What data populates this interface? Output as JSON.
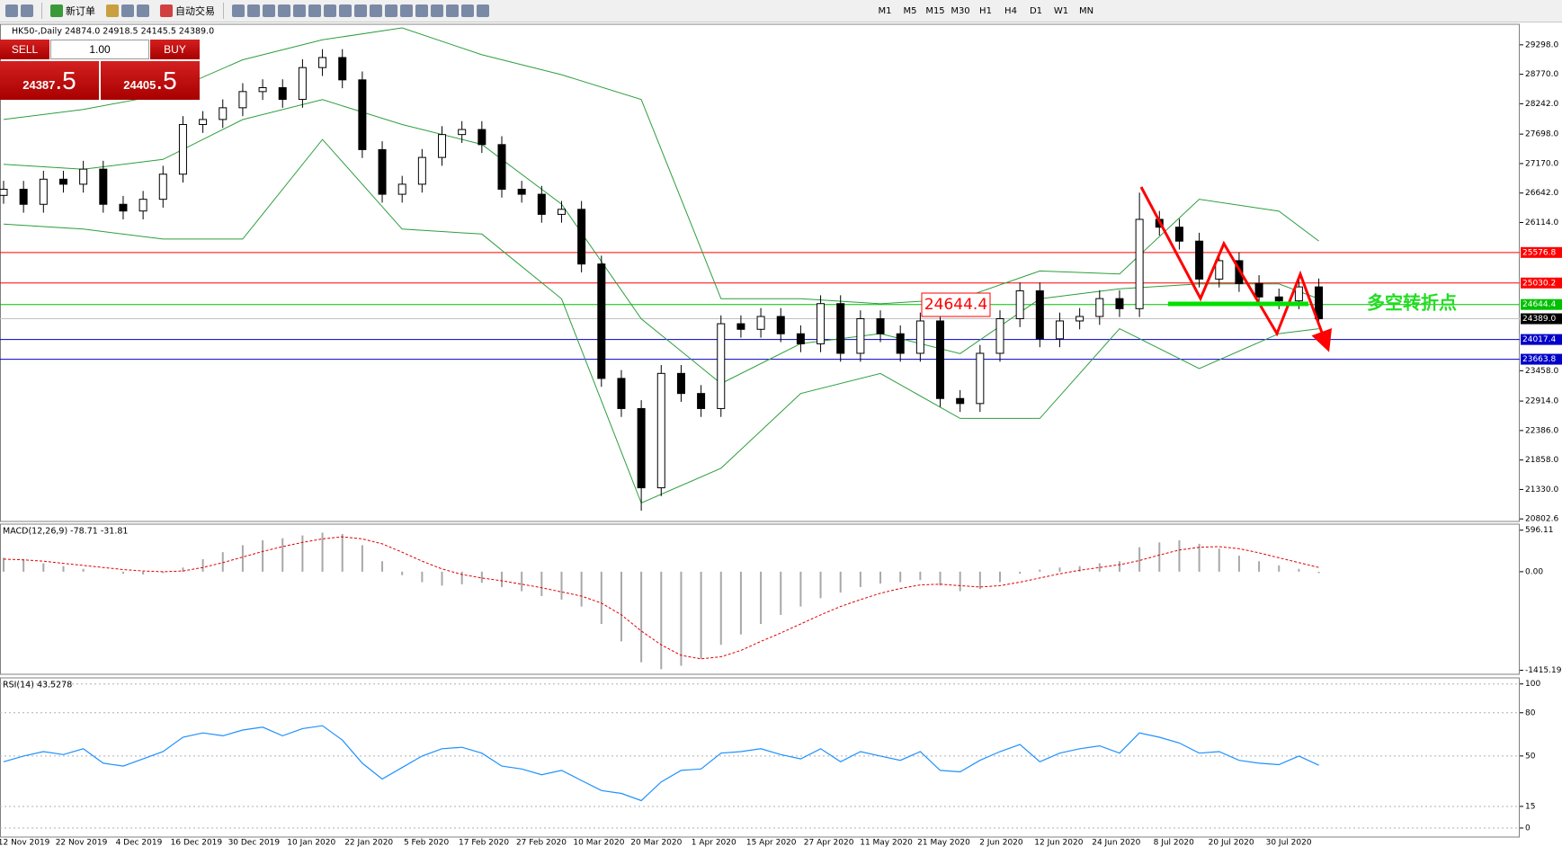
{
  "toolbar": {
    "new_order": "新订单",
    "auto_trading": "自动交易",
    "timeframes": [
      "M1",
      "M5",
      "M15",
      "M30",
      "H1",
      "H4",
      "D1",
      "W1",
      "MN"
    ]
  },
  "trade_panel": {
    "sell": "SELL",
    "buy": "BUY",
    "lots": "1.00",
    "bid_main": "24387",
    "bid_pips": ".5",
    "ask_main": "24405",
    "ask_pips": ".5"
  },
  "chart_data": [
    {
      "type": "candlestick",
      "title": "HK50-,Daily  24874.0 24918.5 24145.5 24389.0",
      "open": [
        26600,
        26710,
        26440,
        26890,
        26800,
        27070,
        26440,
        26320,
        26530,
        26980,
        27870,
        27960,
        28170,
        28460,
        28530,
        28320,
        28890,
        29070,
        28670,
        27420,
        26620,
        26800,
        27280,
        27690,
        27780,
        27510,
        26710,
        26620,
        26260,
        26350,
        25370,
        23320,
        22780,
        21360,
        23410,
        23050,
        22780,
        24300,
        24200,
        24430,
        24120,
        23940,
        24660,
        23770,
        24390,
        24120,
        23770,
        24350,
        22960,
        22870,
        23770,
        24390,
        24890,
        24030,
        24350,
        24430,
        24750,
        24570,
        26170,
        26030,
        25780,
        25100,
        25430,
        25020,
        24780,
        24710,
        24960
      ],
      "high": [
        26860,
        26860,
        27040,
        27040,
        27220,
        27220,
        26590,
        26680,
        27130,
        28020,
        28110,
        28320,
        28610,
        28680,
        28680,
        29040,
        29220,
        29220,
        28820,
        27570,
        26950,
        27430,
        27840,
        27930,
        27930,
        27660,
        26860,
        26770,
        26500,
        26500,
        25520,
        23470,
        22930,
        23560,
        23560,
        23200,
        24450,
        24450,
        24580,
        24580,
        24270,
        24810,
        24810,
        24540,
        24540,
        24270,
        24500,
        24500,
        23110,
        23920,
        24540,
        25040,
        25040,
        24500,
        24580,
        24900,
        24900,
        26650,
        26320,
        26180,
        25930,
        25580,
        25580,
        25170,
        24930,
        25110,
        25110
      ],
      "low": [
        26450,
        26290,
        26290,
        26650,
        26650,
        26290,
        26170,
        26170,
        26380,
        26830,
        27720,
        27810,
        28020,
        28310,
        28170,
        28170,
        28740,
        28520,
        27270,
        26470,
        26470,
        26650,
        27130,
        27540,
        27360,
        26560,
        26470,
        26110,
        26110,
        25220,
        23170,
        22630,
        20950,
        21210,
        22900,
        22630,
        22630,
        24050,
        24050,
        23970,
        23790,
        23790,
        23620,
        23620,
        23970,
        23620,
        23620,
        22810,
        22720,
        22720,
        23620,
        24240,
        23880,
        23880,
        24200,
        24280,
        24420,
        24420,
        25880,
        25630,
        24950,
        24950,
        24870,
        24630,
        24560,
        24560,
        24240
      ],
      "close": [
        26710,
        26440,
        26890,
        26800,
        27070,
        26440,
        26320,
        26530,
        26980,
        27870,
        27960,
        28170,
        28460,
        28530,
        28320,
        28890,
        29070,
        28670,
        27420,
        26620,
        26800,
        27280,
        27690,
        27780,
        27510,
        26710,
        26620,
        26260,
        26350,
        25370,
        23320,
        22780,
        21360,
        23410,
        23050,
        22780,
        24300,
        24200,
        24430,
        24120,
        23940,
        24660,
        23770,
        24390,
        24120,
        23770,
        24350,
        22960,
        22870,
        23770,
        24390,
        24890,
        24030,
        24350,
        24430,
        24750,
        24570,
        26170,
        26030,
        25780,
        25100,
        25430,
        25020,
        24780,
        24710,
        24960,
        24389
      ],
      "bands": {
        "color": "#2e9e3e",
        "upper": [
          27960,
          28138,
          28406,
          29030,
          29387,
          29601,
          29120,
          28763,
          28317,
          24747,
          24747,
          24657,
          24747,
          25246,
          25192,
          26531,
          26317,
          25782
        ],
        "middle": [
          27156,
          27067,
          27245,
          27959,
          28316,
          27870,
          27513,
          26442,
          24389,
          23229,
          23943,
          24122,
          23765,
          24746,
          24925,
          25014,
          25014,
          24746
        ],
        "lower": [
          26085,
          25996,
          25817,
          25817,
          27602,
          25996,
          25907,
          24746,
          21087,
          21711,
          23050,
          23408,
          22604,
          22604,
          24211,
          23497,
          24122,
          24211
        ]
      },
      "up_color": "#ffffff",
      "down_color": "#000000",
      "ylim": [
        20757,
        29666
      ],
      "yticks": [
        {
          "value": 29298,
          "label": "29298.0"
        },
        {
          "value": 28770,
          "label": "28770.0"
        },
        {
          "value": 28242,
          "label": "28242.0"
        },
        {
          "value": 27698,
          "label": "27698.0"
        },
        {
          "value": 27170,
          "label": "27170.0"
        },
        {
          "value": 26642,
          "label": "26642.0"
        },
        {
          "value": 26114,
          "label": "26114.0"
        },
        {
          "value": 23458,
          "label": "23458.0"
        },
        {
          "value": 22914,
          "label": "22914.0"
        },
        {
          "value": 22386,
          "label": "22386.0"
        },
        {
          "value": 21858,
          "label": "21858.0"
        },
        {
          "value": 21330,
          "label": "21330.0"
        },
        20802.6
      ],
      "levels": [
        {
          "value": 25576.8,
          "color": "#ff0000"
        },
        {
          "value": 25030.2,
          "color": "#ff0000"
        },
        {
          "value": 24644.4,
          "color": "#00c000"
        },
        {
          "value": 24017.4,
          "color": "#0000c8"
        },
        {
          "value": 23663.8,
          "color": "#0000c8"
        }
      ],
      "current": {
        "value": 24389.0,
        "label": "24389.0"
      },
      "note": "多空转折点",
      "x_labels": [
        "12 Nov 2019",
        "22 Nov 2019",
        "4 Dec 2019",
        "16 Dec 2019",
        "30 Dec 2019",
        "10 Jan 2020",
        "22 Jan 2020",
        "5 Feb 2020",
        "17 Feb 2020",
        "27 Feb 2020",
        "10 Mar 2020",
        "20 Mar 2020",
        "1 Apr 2020",
        "15 Apr 2020",
        "27 Apr 2020",
        "11 May 2020",
        "21 May 2020",
        "2 Jun 2020",
        "12 Jun 2020",
        "24 Jun 2020",
        "8 Jul 2020",
        "20 Jul 2020",
        "30 Jul 2020"
      ]
    },
    {
      "type": "macd",
      "title": "MACD(12,26,9) -78.71 -31.81",
      "histogram": [
        200,
        180,
        120,
        80,
        40,
        0,
        -30,
        -40,
        -20,
        60,
        180,
        280,
        380,
        450,
        480,
        520,
        560,
        540,
        380,
        150,
        -50,
        -150,
        -200,
        -180,
        -160,
        -220,
        -280,
        -350,
        -400,
        -500,
        -750,
        -1000,
        -1300,
        -1400,
        -1350,
        -1250,
        -1050,
        -900,
        -750,
        -620,
        -500,
        -380,
        -300,
        -220,
        -170,
        -150,
        -120,
        -200,
        -280,
        -250,
        -150,
        -30,
        30,
        60,
        80,
        120,
        150,
        350,
        420,
        450,
        400,
        330,
        230,
        150,
        90,
        40,
        -20
      ],
      "signal": [
        180,
        170,
        150,
        120,
        90,
        60,
        30,
        10,
        0,
        10,
        60,
        130,
        210,
        290,
        360,
        420,
        470,
        500,
        470,
        400,
        280,
        150,
        40,
        -40,
        -90,
        -130,
        -180,
        -230,
        -290,
        -350,
        -450,
        -620,
        -850,
        -1050,
        -1200,
        -1250,
        -1220,
        -1130,
        -1000,
        -880,
        -750,
        -620,
        -500,
        -400,
        -310,
        -240,
        -190,
        -180,
        -200,
        -220,
        -200,
        -150,
        -90,
        -30,
        20,
        60,
        100,
        160,
        240,
        310,
        350,
        360,
        330,
        270,
        200,
        130,
        60
      ],
      "histogram_color": "#a8a8a8",
      "signal_color": "#e00000",
      "ylim": [
        -1472,
        682
      ],
      "yticks": [
        596.11,
        {
          "value": 0,
          "label": "0.00"
        },
        -1415.19
      ]
    },
    {
      "type": "line",
      "title": "RSI(14) 43.5278",
      "values": [
        46,
        50,
        53,
        51,
        55,
        45,
        43,
        48,
        53,
        63,
        66,
        64,
        68,
        70,
        64,
        69,
        71,
        61,
        45,
        34,
        42,
        50,
        55,
        56,
        52,
        43,
        41,
        37,
        40,
        33,
        26,
        24,
        19,
        32,
        40,
        41,
        52,
        53,
        55,
        51,
        48,
        55,
        46,
        53,
        50,
        47,
        53,
        40,
        39,
        47,
        53,
        58,
        46,
        52,
        55,
        57,
        52,
        66,
        63,
        59,
        52,
        53,
        47,
        45,
        44,
        50,
        43.5278
      ],
      "color": "#1e90ff",
      "grid": true,
      "ylim": [
        -6.25,
        104.2
      ],
      "yticks": [
        100,
        80,
        50,
        15,
        0
      ]
    }
  ]
}
